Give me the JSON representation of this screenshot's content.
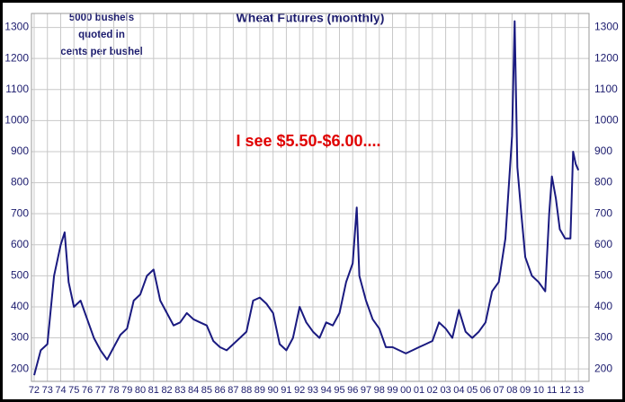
{
  "chart_data": {
    "type": "line",
    "title": "Wheat Futures (monthly)",
    "note_lines": [
      "5000 bushels",
      "quoted in",
      "cents per bushel"
    ],
    "annotation": "I see $5.50-$6.00....",
    "color": "#1a1a80",
    "grid": true,
    "x": [
      1972.0,
      1972.5,
      1973.0,
      1973.5,
      1974.0,
      1974.3,
      1974.6,
      1975.0,
      1975.5,
      1976.0,
      1976.5,
      1977.0,
      1977.5,
      1978.0,
      1978.5,
      1979.0,
      1979.5,
      1980.0,
      1980.5,
      1981.0,
      1981.5,
      1982.0,
      1982.5,
      1983.0,
      1983.5,
      1984.0,
      1984.5,
      1985.0,
      1985.5,
      1986.0,
      1986.5,
      1987.0,
      1987.5,
      1988.0,
      1988.5,
      1989.0,
      1989.5,
      1990.0,
      1990.5,
      1991.0,
      1991.5,
      1992.0,
      1992.5,
      1993.0,
      1993.5,
      1994.0,
      1994.5,
      1995.0,
      1995.5,
      1996.0,
      1996.3,
      1996.5,
      1997.0,
      1997.5,
      1998.0,
      1998.5,
      1999.0,
      1999.5,
      2000.0,
      2000.5,
      2001.0,
      2001.5,
      2002.0,
      2002.5,
      2003.0,
      2003.5,
      2004.0,
      2004.5,
      2005.0,
      2005.5,
      2006.0,
      2006.5,
      2007.0,
      2007.5,
      2008.0,
      2008.2,
      2008.4,
      2008.7,
      2009.0,
      2009.5,
      2010.0,
      2010.5,
      2010.8,
      2011.0,
      2011.3,
      2011.6,
      2012.0,
      2012.4,
      2012.6,
      2012.8,
      2013.0
    ],
    "values": [
      180,
      260,
      280,
      500,
      600,
      640,
      480,
      400,
      420,
      360,
      300,
      260,
      230,
      270,
      310,
      330,
      420,
      440,
      500,
      520,
      420,
      380,
      340,
      350,
      380,
      360,
      350,
      340,
      290,
      270,
      260,
      280,
      300,
      320,
      420,
      430,
      410,
      380,
      280,
      260,
      300,
      400,
      350,
      320,
      300,
      350,
      340,
      380,
      480,
      540,
      720,
      500,
      420,
      360,
      330,
      270,
      270,
      260,
      250,
      260,
      270,
      280,
      290,
      350,
      330,
      300,
      390,
      320,
      300,
      320,
      350,
      450,
      480,
      620,
      950,
      1320,
      850,
      700,
      560,
      500,
      480,
      450,
      700,
      820,
      750,
      650,
      620,
      620,
      900,
      860,
      840
    ],
    "xlim": [
      1971.8,
      2013.8
    ],
    "xticks": [
      {
        "value": 1972,
        "label": "72"
      },
      {
        "value": 1973,
        "label": "73"
      },
      {
        "value": 1974,
        "label": "74"
      },
      {
        "value": 1975,
        "label": "75"
      },
      {
        "value": 1976,
        "label": "76"
      },
      {
        "value": 1977,
        "label": "77"
      },
      {
        "value": 1978,
        "label": "78"
      },
      {
        "value": 1979,
        "label": "79"
      },
      {
        "value": 1980,
        "label": "80"
      },
      {
        "value": 1981,
        "label": "81"
      },
      {
        "value": 1982,
        "label": "82"
      },
      {
        "value": 1983,
        "label": "83"
      },
      {
        "value": 1984,
        "label": "84"
      },
      {
        "value": 1985,
        "label": "85"
      },
      {
        "value": 1986,
        "label": "86"
      },
      {
        "value": 1987,
        "label": "87"
      },
      {
        "value": 1988,
        "label": "88"
      },
      {
        "value": 1989,
        "label": "89"
      },
      {
        "value": 1990,
        "label": "90"
      },
      {
        "value": 1991,
        "label": "91"
      },
      {
        "value": 1992,
        "label": "92"
      },
      {
        "value": 1993,
        "label": "93"
      },
      {
        "value": 1994,
        "label": "94"
      },
      {
        "value": 1995,
        "label": "95"
      },
      {
        "value": 1996,
        "label": "96"
      },
      {
        "value": 1997,
        "label": "97"
      },
      {
        "value": 1998,
        "label": "98"
      },
      {
        "value": 1999,
        "label": "99"
      },
      {
        "value": 2000,
        "label": "00"
      },
      {
        "value": 2001,
        "label": "01"
      },
      {
        "value": 2002,
        "label": "02"
      },
      {
        "value": 2003,
        "label": "03"
      },
      {
        "value": 2004,
        "label": "04"
      },
      {
        "value": 2005,
        "label": "05"
      },
      {
        "value": 2006,
        "label": "06"
      },
      {
        "value": 2007,
        "label": "07"
      },
      {
        "value": 2008,
        "label": "08"
      },
      {
        "value": 2009,
        "label": "09"
      },
      {
        "value": 2010,
        "label": "10"
      },
      {
        "value": 2011,
        "label": "11"
      },
      {
        "value": 2012,
        "label": "12"
      },
      {
        "value": 2013,
        "label": "13"
      }
    ],
    "ylim": [
      160,
      1345
    ],
    "yticks": [
      200,
      300,
      400,
      500,
      600,
      700,
      800,
      900,
      1000,
      1100,
      1200,
      1300
    ]
  }
}
